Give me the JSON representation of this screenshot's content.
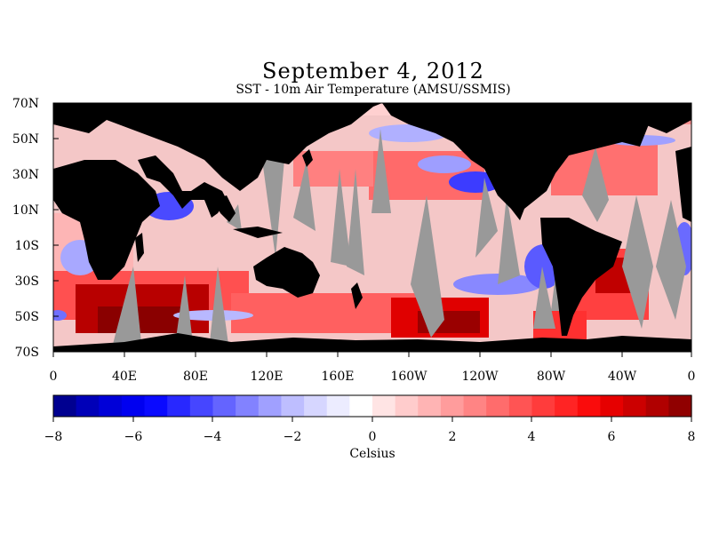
{
  "title": "September 4, 2012",
  "subtitle": "SST - 10m Air Temperature (AMSU/SSMIS)",
  "map": {
    "lat_labels": [
      "70N",
      "50N",
      "30N",
      "10N",
      "10S",
      "30S",
      "50S",
      "70S"
    ],
    "lon_labels": [
      "0",
      "40E",
      "80E",
      "120E",
      "160E",
      "160W",
      "120W",
      "80W",
      "40W",
      "0"
    ],
    "colors": {
      "land": "#000000",
      "no_data": "#999999",
      "ocean_bg": "#f4c7c7"
    }
  },
  "colorbar": {
    "ticks": [
      "−8",
      "−6",
      "−4",
      "−2",
      "0",
      "2",
      "4",
      "6",
      "8"
    ],
    "label": "Celsius",
    "colors": [
      "#000090",
      "#0000b8",
      "#0000d8",
      "#0000f0",
      "#0a0aff",
      "#2828ff",
      "#4646ff",
      "#6464ff",
      "#8282ff",
      "#a0a0ff",
      "#bebeff",
      "#d6d6ff",
      "#ececff",
      "#ffffff",
      "#ffe4e4",
      "#ffcccc",
      "#ffb4b4",
      "#ff9c9c",
      "#ff8484",
      "#ff6c6c",
      "#ff5454",
      "#ff3c3c",
      "#ff2424",
      "#fa0c0c",
      "#e60000",
      "#cc0000",
      "#b00000",
      "#900000"
    ]
  }
}
